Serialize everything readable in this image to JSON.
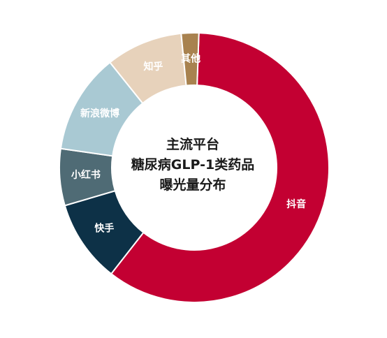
{
  "chart_data": {
    "type": "pie",
    "variant": "donut",
    "title_lines": [
      "主流平台",
      "糖尿病GLP-1类药品",
      "曝光量分布"
    ],
    "unit": "%",
    "slices": [
      {
        "label": "抖音",
        "value": 60.0,
        "color": "#c30032",
        "label_color": "#ffffff"
      },
      {
        "label": "快手",
        "value": 9.9,
        "color": "#0d3147",
        "label_color": "#ffffff"
      },
      {
        "label": "小红书",
        "value": 6.8,
        "color": "#4f6b75",
        "label_color": "#ffffff"
      },
      {
        "label": "新浪微博",
        "value": 12.0,
        "color": "#a9c9d3",
        "label_color": "#ffffff"
      },
      {
        "label": "知乎",
        "value": 9.2,
        "color": "#e7d2bb",
        "label_color": "#ffffff"
      },
      {
        "label": "其他",
        "value": 2.1,
        "color": "#a8824f",
        "label_color": "#ffffff"
      }
    ],
    "start": "top, slightly right of center",
    "direction": "clockwise",
    "legend": "none (labels on segments)"
  }
}
